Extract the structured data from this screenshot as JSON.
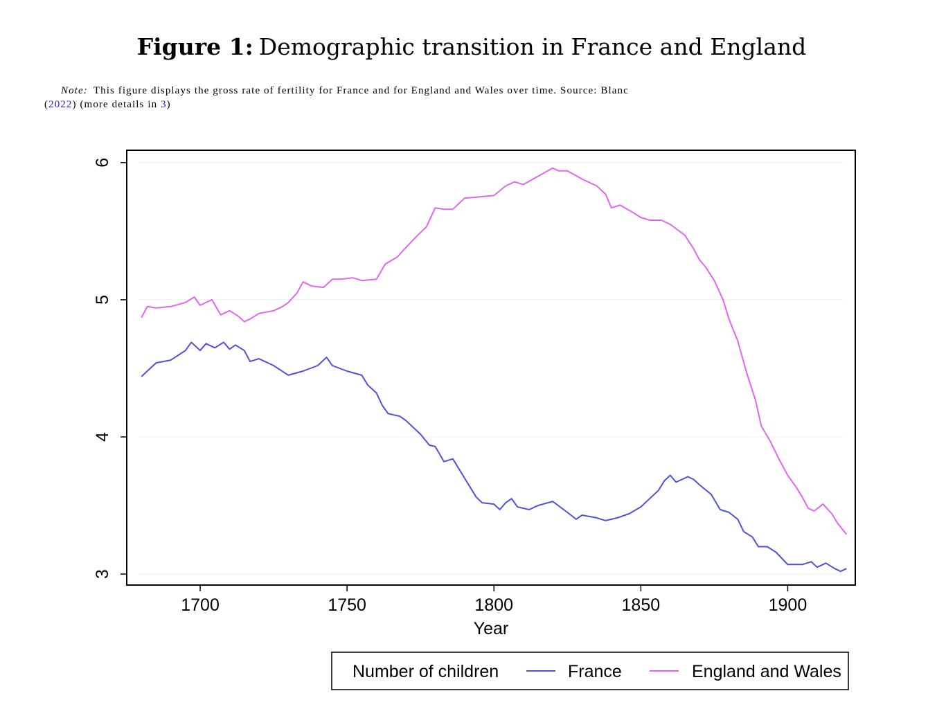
{
  "figure": {
    "label": "Figure 1:",
    "title": "Demographic transition in France and England",
    "note_label": "Note:",
    "note_text": "This figure displays the gross rate of fertility for France and for England and Wales over time. Source: Blanc",
    "note_open": "(",
    "note_cite": "2022",
    "note_mid": ") (more details in ",
    "note_ref": "3",
    "note_close": ")"
  },
  "chart_data": {
    "type": "line",
    "title": "",
    "xlabel": "Year",
    "ylabel": "",
    "xlim": [
      1675,
      1923
    ],
    "ylim": [
      2.92,
      6.09
    ],
    "xticks": [
      1700,
      1750,
      1800,
      1850,
      1900
    ],
    "yticks": [
      3,
      4,
      5,
      6
    ],
    "grid": true,
    "legend": {
      "title": "Number of children",
      "placement": "bottom-right"
    },
    "series": [
      {
        "name": "France",
        "color": "#4f4fe0",
        "x": [
          1680,
          1685,
          1690,
          1695,
          1697,
          1700,
          1702,
          1705,
          1708,
          1710,
          1712,
          1715,
          1717,
          1720,
          1725,
          1730,
          1735,
          1740,
          1743,
          1745,
          1750,
          1755,
          1757,
          1760,
          1762,
          1764,
          1768,
          1770,
          1775,
          1778,
          1780,
          1783,
          1786,
          1790,
          1792,
          1794,
          1796,
          1800,
          1802,
          1804,
          1806,
          1808,
          1812,
          1815,
          1820,
          1825,
          1828,
          1830,
          1835,
          1838,
          1842,
          1846,
          1850,
          1853,
          1856,
          1858,
          1860,
          1862,
          1866,
          1868,
          1870,
          1874,
          1877,
          1880,
          1883,
          1885,
          1888,
          1890,
          1893,
          1896,
          1900,
          1905,
          1908,
          1910,
          1913,
          1916,
          1918,
          1920
        ],
        "y": [
          4.44,
          4.54,
          4.56,
          4.63,
          4.69,
          4.63,
          4.68,
          4.65,
          4.69,
          4.64,
          4.67,
          4.63,
          4.55,
          4.57,
          4.52,
          4.45,
          4.48,
          4.52,
          4.58,
          4.52,
          4.48,
          4.45,
          4.38,
          4.32,
          4.23,
          4.17,
          4.15,
          4.12,
          4.02,
          3.94,
          3.93,
          3.82,
          3.84,
          3.7,
          3.63,
          3.56,
          3.52,
          3.51,
          3.47,
          3.52,
          3.55,
          3.49,
          3.47,
          3.5,
          3.53,
          3.45,
          3.4,
          3.43,
          3.41,
          3.39,
          3.41,
          3.44,
          3.49,
          3.55,
          3.61,
          3.68,
          3.72,
          3.67,
          3.71,
          3.69,
          3.65,
          3.58,
          3.47,
          3.45,
          3.4,
          3.31,
          3.27,
          3.2,
          3.2,
          3.16,
          3.07,
          3.07,
          3.09,
          3.05,
          3.08,
          3.04,
          3.02,
          3.04
        ]
      },
      {
        "name": "England and Wales",
        "color": "#e066f0",
        "x": [
          1680,
          1682,
          1685,
          1690,
          1695,
          1698,
          1700,
          1702,
          1704,
          1707,
          1710,
          1713,
          1715,
          1717,
          1720,
          1725,
          1728,
          1730,
          1733,
          1735,
          1738,
          1742,
          1745,
          1748,
          1752,
          1755,
          1760,
          1763,
          1767,
          1770,
          1774,
          1777,
          1780,
          1783,
          1786,
          1790,
          1795,
          1800,
          1804,
          1807,
          1810,
          1815,
          1820,
          1822,
          1825,
          1830,
          1835,
          1838,
          1840,
          1843,
          1847,
          1850,
          1853,
          1857,
          1860,
          1865,
          1868,
          1870,
          1872,
          1875,
          1878,
          1880,
          1883,
          1886,
          1889,
          1891,
          1894,
          1897,
          1900,
          1903,
          1905,
          1907,
          1909,
          1912,
          1915,
          1917,
          1920
        ],
        "y": [
          4.87,
          4.95,
          4.94,
          4.95,
          4.98,
          5.02,
          4.96,
          4.98,
          5.0,
          4.89,
          4.92,
          4.88,
          4.84,
          4.86,
          4.9,
          4.92,
          4.95,
          4.98,
          5.05,
          5.13,
          5.1,
          5.09,
          5.15,
          5.15,
          5.16,
          5.14,
          5.15,
          5.26,
          5.31,
          5.38,
          5.47,
          5.53,
          5.67,
          5.66,
          5.66,
          5.74,
          5.75,
          5.76,
          5.83,
          5.86,
          5.84,
          5.9,
          5.96,
          5.94,
          5.94,
          5.88,
          5.83,
          5.77,
          5.67,
          5.69,
          5.64,
          5.6,
          5.58,
          5.58,
          5.55,
          5.47,
          5.37,
          5.29,
          5.24,
          5.14,
          5.0,
          4.86,
          4.7,
          4.47,
          4.27,
          4.08,
          3.97,
          3.84,
          3.72,
          3.63,
          3.56,
          3.48,
          3.46,
          3.51,
          3.44,
          3.37,
          3.29
        ]
      }
    ]
  }
}
